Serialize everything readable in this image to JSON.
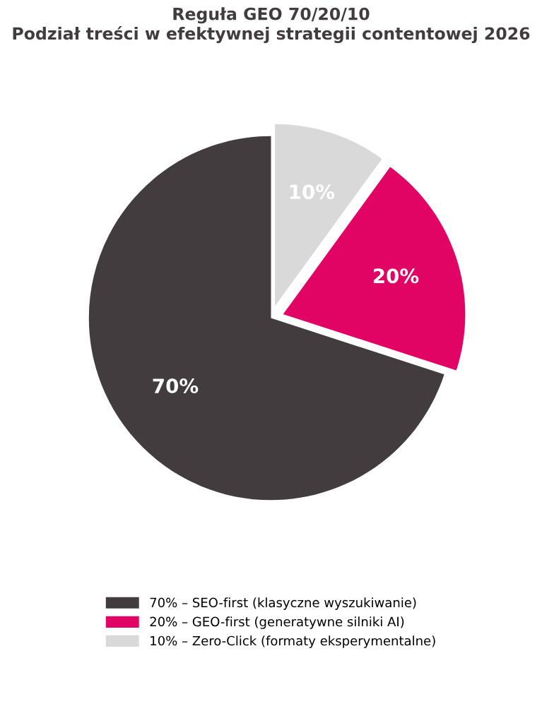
{
  "chart_data": {
    "type": "pie",
    "title": "Reguła GEO 70/20/10\nPodział treści w efektywnej strategii contentowej 2026",
    "categories": [
      "70% – SEO-first (klasyczne wyszukiwanie)",
      "20% – GEO-first (generatywne silniki AI)",
      "10% – Zero-Click (formaty eksperymentalne)"
    ],
    "values": [
      70,
      20,
      10
    ],
    "value_labels": [
      "70%",
      "20%",
      "10%"
    ],
    "colors": [
      "#433c3f",
      "#e20465",
      "#d9d9d9"
    ],
    "legend": "bottom"
  }
}
